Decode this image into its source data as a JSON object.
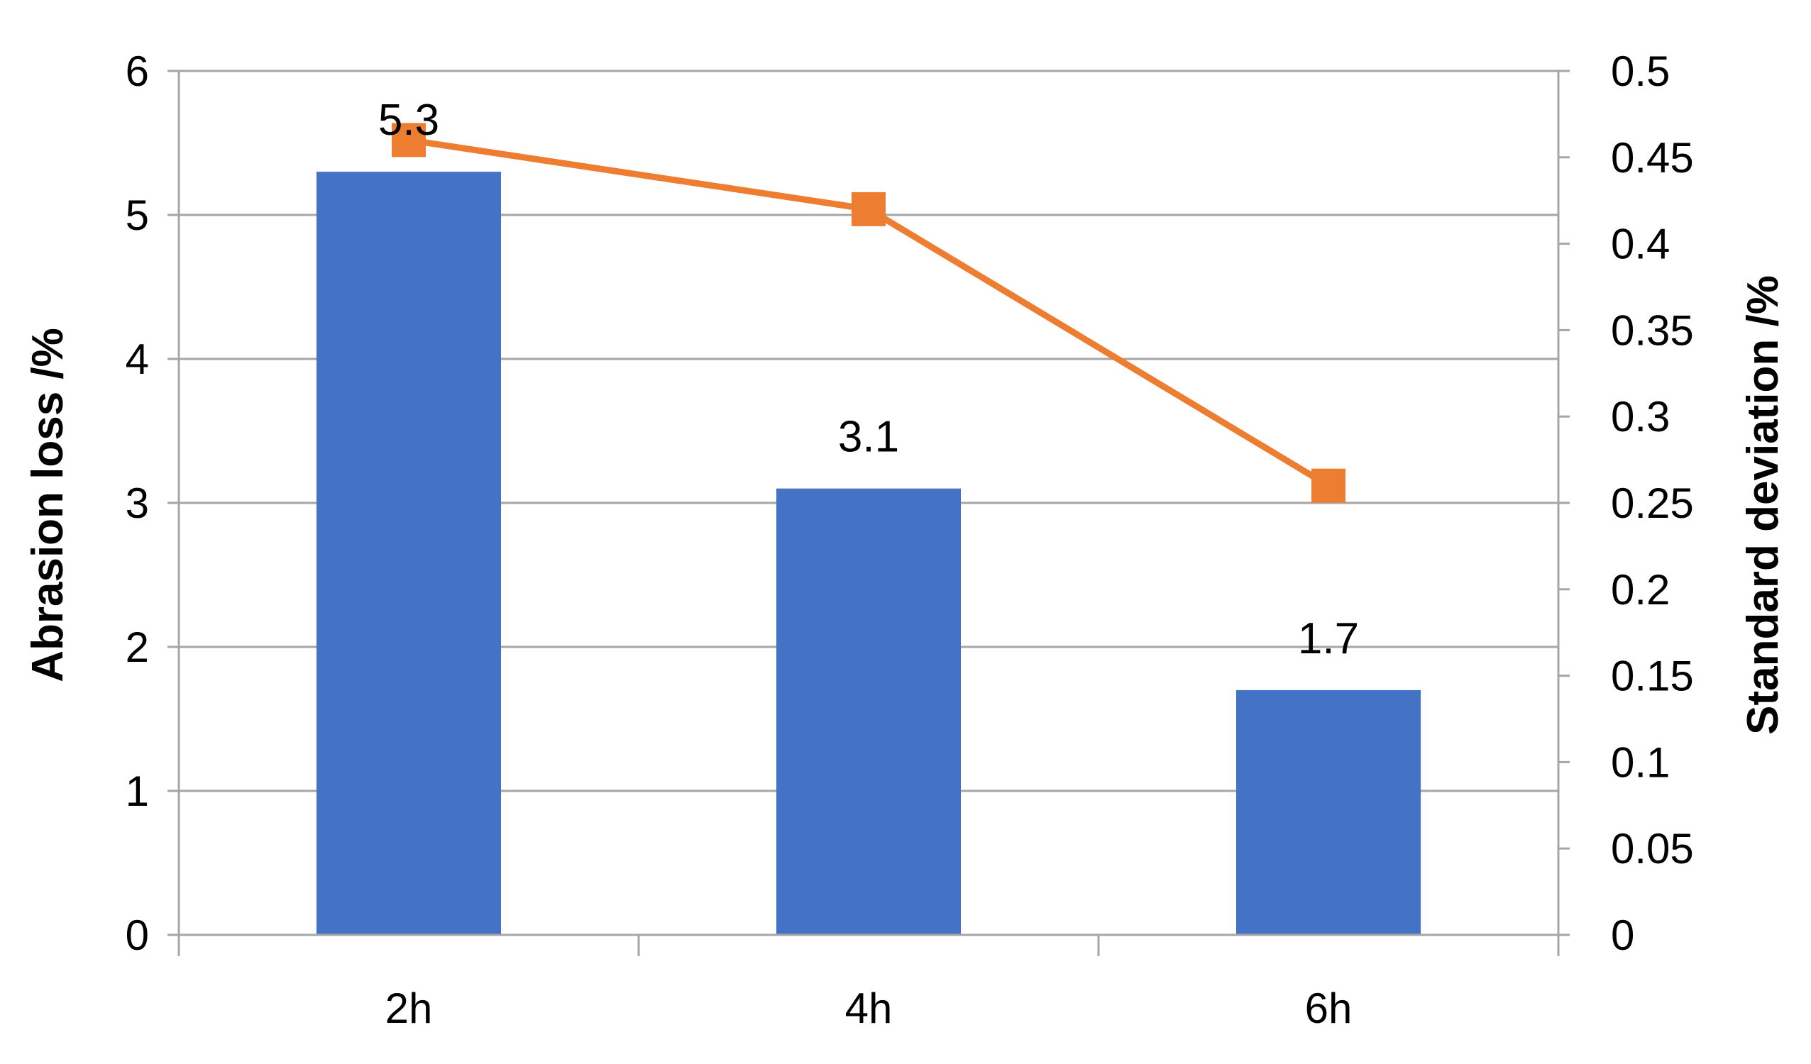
{
  "chart_data": {
    "type": "bar",
    "title": "",
    "categories": [
      "2h",
      "4h",
      "6h"
    ],
    "series": [
      {
        "type": "bar",
        "axis": "left",
        "values": [
          5.3,
          3.1,
          1.7
        ],
        "data_labels": [
          "5.3",
          "3.1",
          "1.7"
        ],
        "color": "#4472C4"
      },
      {
        "type": "line",
        "axis": "right",
        "values": [
          0.46,
          0.42,
          0.26
        ],
        "color": "#ED7D31",
        "marker": "square"
      }
    ],
    "ylabel": "Abrasion loss /%",
    "y2label": "Standard deviation /%",
    "ylim": [
      0,
      6
    ],
    "y2lim": [
      0,
      0.5
    ],
    "yticks": [
      "0",
      "1",
      "2",
      "3",
      "4",
      "5",
      "6"
    ],
    "y2ticks": [
      "0",
      "0.05",
      "0.1",
      "0.15",
      "0.2",
      "0.25",
      "0.3",
      "0.35",
      "0.4",
      "0.45",
      "0.5"
    ],
    "grid": true,
    "legend": "none",
    "colors": {
      "grid": "#A6A6A6",
      "axis": "#A6A6A6",
      "text": "#000000"
    }
  }
}
